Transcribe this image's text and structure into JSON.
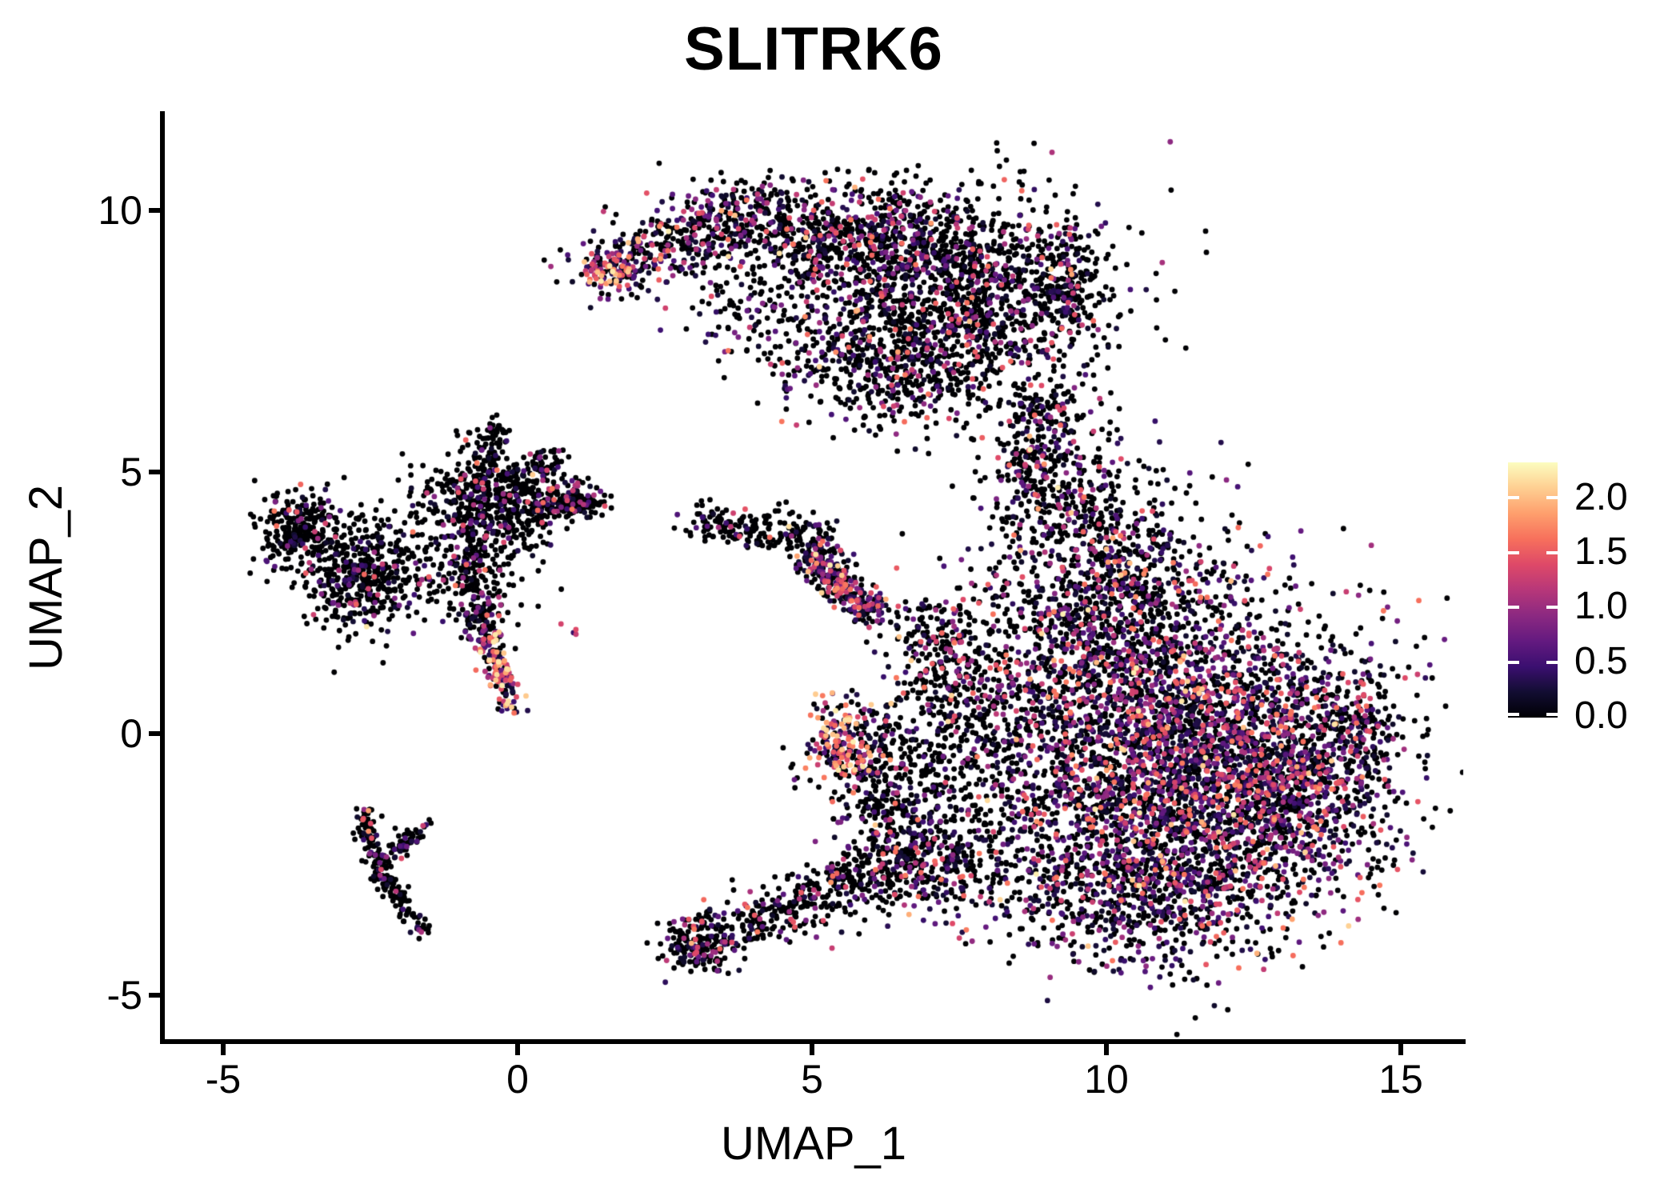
{
  "title": "SLITRK6",
  "chart_data": {
    "type": "scatter",
    "title": "SLITRK6",
    "xlabel": "UMAP_1",
    "ylabel": "UMAP_2",
    "xlim": [
      -6.0,
      16.06
    ],
    "ylim": [
      -5.89,
      11.85
    ],
    "xticks": [
      -5,
      0,
      5,
      10,
      15
    ],
    "xtick_labels": [
      "-5",
      "0",
      "5",
      "10",
      "15"
    ],
    "yticks": [
      -5,
      0,
      5,
      10
    ],
    "ytick_labels": [
      "-5",
      "0",
      "5",
      "10"
    ],
    "grid": false,
    "background": "#ffffff",
    "point_color_zero": "#000004",
    "point_radius_px": 3.4,
    "seed": 7,
    "colorbar": {
      "domain": [
        0,
        2.32
      ],
      "ticks": [
        0.0,
        0.5,
        1.0,
        1.5,
        2.0
      ],
      "tick_labels": [
        "0.0",
        "0.5",
        "1.0",
        "1.5",
        "2.0"
      ],
      "colormap": "magma",
      "stops": [
        {
          "t": 0.0,
          "color": "#000004"
        },
        {
          "t": 0.1,
          "color": "#120d32"
        },
        {
          "t": 0.2,
          "color": "#3b0f70"
        },
        {
          "t": 0.3,
          "color": "#641a80"
        },
        {
          "t": 0.4,
          "color": "#8c2981"
        },
        {
          "t": 0.5,
          "color": "#b73779"
        },
        {
          "t": 0.6,
          "color": "#de4968"
        },
        {
          "t": 0.7,
          "color": "#f7705c"
        },
        {
          "t": 0.8,
          "color": "#fe9f6d"
        },
        {
          "t": 0.9,
          "color": "#fecf92"
        },
        {
          "t": 1.0,
          "color": "#fcfdbf"
        }
      ]
    },
    "clusters": [
      {
        "name": "top-left-arm",
        "type": "band",
        "from": [
          1.35,
          8.75
        ],
        "to": [
          4.3,
          10.15
        ],
        "width": 0.36,
        "n": 420,
        "p": 0.5,
        "bright": 0.1
      },
      {
        "name": "top-left-tip",
        "type": "gauss",
        "c": [
          1.5,
          8.85
        ],
        "s": [
          0.2,
          0.16
        ],
        "n": 60,
        "p": 0.9,
        "bright": 0.45
      },
      {
        "name": "top-mid",
        "type": "gauss",
        "c": [
          5.3,
          9.5
        ],
        "s": [
          1.15,
          0.52
        ],
        "n": 700,
        "p": 0.32,
        "bright": 0.05
      },
      {
        "name": "top-right-mass",
        "type": "gauss",
        "c": [
          7.5,
          8.35
        ],
        "s": [
          1.25,
          1.0
        ],
        "n": 1500,
        "p": 0.27,
        "bright": 0.04
      },
      {
        "name": "top-lower-fringe",
        "type": "gauss",
        "c": [
          6.25,
          6.9
        ],
        "s": [
          0.9,
          0.55
        ],
        "n": 300,
        "p": 0.25,
        "bright": 0.04
      },
      {
        "name": "top-inner-band",
        "type": "band",
        "from": [
          3.2,
          8.35
        ],
        "to": [
          5.6,
          7.15
        ],
        "width": 0.45,
        "n": 140,
        "p": 0.3,
        "bright": 0.05
      },
      {
        "name": "top-right-edge",
        "type": "gauss",
        "c": [
          9.35,
          8.55
        ],
        "s": [
          0.28,
          0.55
        ],
        "n": 150,
        "p": 0.35,
        "bright": 0.05
      },
      {
        "name": "neck-band",
        "type": "band",
        "from": [
          9.1,
          6.4
        ],
        "to": [
          8.5,
          4.4
        ],
        "width": 0.3,
        "n": 200,
        "p": 0.3,
        "bright": 0.05
      },
      {
        "name": "neck-scatter",
        "type": "gauss",
        "c": [
          8.9,
          4.9
        ],
        "s": [
          0.7,
          0.95
        ],
        "n": 160,
        "p": 0.3,
        "bright": 0.05
      },
      {
        "name": "right-upper",
        "type": "gauss",
        "c": [
          10.2,
          2.6
        ],
        "s": [
          1.0,
          0.95
        ],
        "n": 900,
        "p": 0.38,
        "bright": 0.05
      },
      {
        "name": "right-main",
        "type": "gauss",
        "c": [
          11.2,
          -0.4
        ],
        "s": [
          1.6,
          1.45
        ],
        "n": 3100,
        "p": 0.52,
        "bright": 0.06
      },
      {
        "name": "right-east",
        "type": "gauss",
        "c": [
          13.1,
          -0.9
        ],
        "s": [
          0.85,
          1.05
        ],
        "n": 800,
        "p": 0.45,
        "bright": 0.06
      },
      {
        "name": "right-tip",
        "type": "gauss",
        "c": [
          14.25,
          0.2
        ],
        "s": [
          0.3,
          0.5
        ],
        "n": 130,
        "p": 0.5,
        "bright": 0.06
      },
      {
        "name": "right-bottom",
        "type": "gauss",
        "c": [
          10.7,
          -2.95
        ],
        "s": [
          1.25,
          0.75
        ],
        "n": 820,
        "p": 0.45,
        "bright": 0.06
      },
      {
        "name": "right-west-sparse",
        "type": "gauss",
        "c": [
          8.45,
          0.6
        ],
        "s": [
          0.8,
          1.3
        ],
        "n": 380,
        "p": 0.3,
        "bright": 0.05
      },
      {
        "name": "right-north-sparse",
        "type": "gauss",
        "c": [
          9.7,
          4.4
        ],
        "s": [
          0.6,
          0.85
        ],
        "n": 150,
        "p": 0.3,
        "bright": 0.05
      },
      {
        "name": "left-blob-west",
        "type": "gauss",
        "c": [
          -3.7,
          3.9
        ],
        "s": [
          0.35,
          0.4
        ],
        "n": 260,
        "p": 0.2,
        "bright": 0.03
      },
      {
        "name": "left-blob-east",
        "type": "gauss",
        "c": [
          -2.7,
          3.05
        ],
        "s": [
          0.45,
          0.55
        ],
        "n": 430,
        "p": 0.18,
        "bright": 0.03
      },
      {
        "name": "left-bridge",
        "type": "gauss",
        "c": [
          -1.6,
          3.2
        ],
        "s": [
          0.4,
          0.5
        ],
        "n": 90,
        "p": 0.15,
        "bright": 0.03
      },
      {
        "name": "centerleft-core",
        "type": "gauss",
        "c": [
          -0.5,
          4.3
        ],
        "s": [
          0.55,
          0.6
        ],
        "n": 560,
        "p": 0.16,
        "bright": 0.03
      },
      {
        "name": "centerleft-arm-up",
        "type": "band",
        "from": [
          -0.45,
          4.9
        ],
        "to": [
          -0.4,
          5.95
        ],
        "width": 0.13,
        "n": 70,
        "p": 0.15,
        "bright": 0.03
      },
      {
        "name": "centerleft-arm-ne",
        "type": "band",
        "from": [
          0.0,
          4.7
        ],
        "to": [
          0.7,
          5.3
        ],
        "width": 0.15,
        "n": 70,
        "p": 0.25,
        "bright": 0.08
      },
      {
        "name": "centerleft-arm-right",
        "type": "band",
        "from": [
          0.15,
          4.25
        ],
        "to": [
          1.35,
          4.5
        ],
        "width": 0.17,
        "n": 140,
        "p": 0.2,
        "bright": 0.04
      },
      {
        "name": "centerleft-knot",
        "type": "gauss",
        "c": [
          1.0,
          4.4
        ],
        "s": [
          0.18,
          0.14
        ],
        "n": 60,
        "p": 0.3,
        "bright": 0.05
      },
      {
        "name": "centerleft-down",
        "type": "band",
        "from": [
          -0.85,
          3.2
        ],
        "to": [
          -0.5,
          1.85
        ],
        "width": 0.24,
        "n": 200,
        "p": 0.3,
        "bright": 0.05
      },
      {
        "name": "bright-streak",
        "type": "band",
        "from": [
          -0.5,
          1.8
        ],
        "to": [
          -0.12,
          0.55
        ],
        "width": 0.12,
        "n": 140,
        "p": 0.85,
        "bright": 0.4
      },
      {
        "name": "stray-bits",
        "type": "gauss",
        "c": [
          0.95,
          2.0
        ],
        "s": [
          0.1,
          0.1
        ],
        "n": 4,
        "p": 0.75,
        "bright": 0.6
      },
      {
        "name": "v-arm-left",
        "type": "band",
        "from": [
          -2.62,
          -1.5
        ],
        "to": [
          -2.33,
          -2.7
        ],
        "width": 0.1,
        "n": 95,
        "p": 0.2,
        "bright": 0.03
      },
      {
        "name": "v-arm-down",
        "type": "band",
        "from": [
          -2.33,
          -2.7
        ],
        "to": [
          -1.6,
          -3.85
        ],
        "width": 0.1,
        "n": 95,
        "p": 0.18,
        "bright": 0.03
      },
      {
        "name": "v-arm-up",
        "type": "band",
        "from": [
          -2.1,
          -2.3
        ],
        "to": [
          -1.5,
          -1.65
        ],
        "width": 0.1,
        "n": 55,
        "p": 0.2,
        "bright": 0.03
      },
      {
        "name": "mini-x-east",
        "type": "gauss",
        "c": [
          4.35,
          3.9
        ],
        "s": [
          0.5,
          0.22
        ],
        "n": 120,
        "p": 0.12,
        "bright": 0.03
      },
      {
        "name": "mini-x-west",
        "type": "gauss",
        "c": [
          3.4,
          4.05
        ],
        "s": [
          0.3,
          0.18
        ],
        "n": 60,
        "p": 0.12,
        "bright": 0.03
      },
      {
        "name": "mini-knot",
        "type": "gauss",
        "c": [
          5.15,
          3.7
        ],
        "s": [
          0.16,
          0.18
        ],
        "n": 40,
        "p": 0.3,
        "bright": 0.05
      },
      {
        "name": "bright-diagonal",
        "type": "band",
        "from": [
          4.95,
          3.35
        ],
        "to": [
          6.05,
          2.3
        ],
        "width": 0.17,
        "n": 300,
        "p": 0.6,
        "bright": 0.12
      },
      {
        "name": "east-of-diagonal",
        "type": "gauss",
        "c": [
          7.1,
          1.7
        ],
        "s": [
          0.3,
          0.5
        ],
        "n": 110,
        "p": 0.3,
        "bright": 0.06
      },
      {
        "name": "bright-orange-knot",
        "type": "gauss",
        "c": [
          5.55,
          -0.15
        ],
        "s": [
          0.3,
          0.42
        ],
        "n": 190,
        "p": 0.78,
        "bright": 0.5
      },
      {
        "name": "orange-surround",
        "type": "gauss",
        "c": [
          6.15,
          -0.7
        ],
        "s": [
          0.5,
          0.55
        ],
        "n": 170,
        "p": 0.25,
        "bright": 0.05
      },
      {
        "name": "mid-sparse-upper",
        "type": "gauss",
        "c": [
          7.2,
          0.4
        ],
        "s": [
          0.8,
          1.1
        ],
        "n": 260,
        "p": 0.3,
        "bright": 0.05
      },
      {
        "name": "mid-sparse-lower",
        "type": "gauss",
        "c": [
          6.6,
          -1.9
        ],
        "s": [
          0.6,
          0.6
        ],
        "n": 180,
        "p": 0.3,
        "bright": 0.05
      },
      {
        "name": "comet-tip",
        "type": "gauss",
        "c": [
          3.05,
          -4.05
        ],
        "s": [
          0.28,
          0.26
        ],
        "n": 175,
        "p": 0.3,
        "bright": 0.04
      },
      {
        "name": "comet-trail",
        "type": "band",
        "from": [
          3.4,
          -3.85
        ],
        "to": [
          6.4,
          -2.55
        ],
        "width": 0.28,
        "n": 380,
        "p": 0.2,
        "bright": 0.03
      },
      {
        "name": "comet-merge",
        "type": "gauss",
        "c": [
          7.25,
          -2.5
        ],
        "s": [
          0.7,
          0.55
        ],
        "n": 280,
        "p": 0.35,
        "bright": 0.05
      }
    ]
  }
}
